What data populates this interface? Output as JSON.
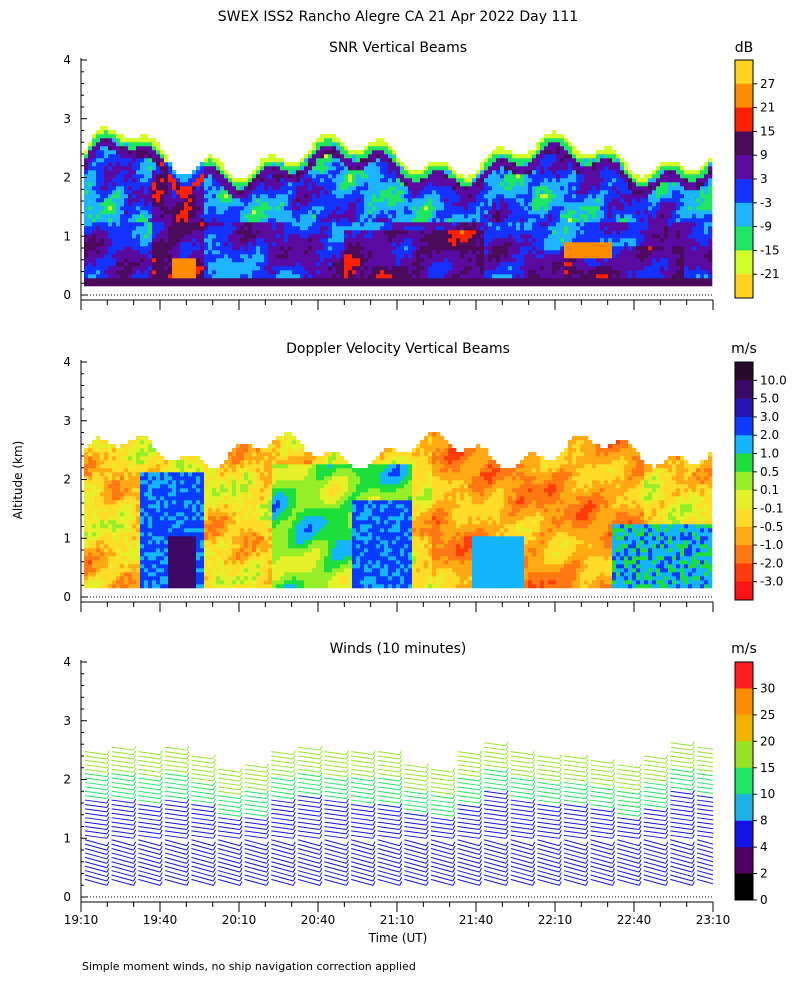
{
  "figure": {
    "title": "SWEX ISS2 Rancho Alegre CA  21 Apr 2022 Day 111",
    "ylabel": "Altitude (km)",
    "xlabel": "Time (UT)",
    "footnote": "Simple moment winds, no ship navigation correction applied"
  },
  "chart_data": [
    {
      "type": "heatmap",
      "title": "SNR Vertical Beams",
      "x_ticks": [
        "19:10",
        "19:40",
        "20:10",
        "20:40",
        "21:10",
        "21:40",
        "22:10",
        "22:40",
        "23:10"
      ],
      "ylim": [
        0,
        4
      ],
      "y_ticks": [
        "0",
        "1",
        "2",
        "3",
        "4"
      ],
      "colorbar": {
        "unit": "dB",
        "labels": [
          "27",
          "21",
          "15",
          "9",
          "3",
          "-3",
          "-9",
          "-15",
          "-21"
        ],
        "colors": [
          "#ffd21e",
          "#ff8c00",
          "#ff2200",
          "#4b0a5a",
          "#5a0aa0",
          "#1432ff",
          "#1eb4ff",
          "#1ee664",
          "#d2ff28",
          "#ffd21e"
        ]
      },
      "description_top_km": 2.5
    },
    {
      "type": "heatmap",
      "title": "Doppler Velocity Vertical Beams",
      "x_ticks": [
        "19:10",
        "19:40",
        "20:10",
        "20:40",
        "21:10",
        "21:40",
        "22:10",
        "22:40",
        "23:10"
      ],
      "ylim": [
        0,
        4
      ],
      "y_ticks": [
        "0",
        "1",
        "2",
        "3",
        "4"
      ],
      "colorbar": {
        "unit": "m/s",
        "labels": [
          "10.0",
          "5.0",
          "3.0",
          "2.0",
          "1.0",
          "0.5",
          "0.1",
          "-0.1",
          "-0.5",
          "-1.0",
          "-2.0",
          "-3.0"
        ],
        "colors": [
          "#2a0a2a",
          "#3c0a64",
          "#2814b4",
          "#0a3cff",
          "#14b4ff",
          "#1ede3c",
          "#96ee28",
          "#e6f028",
          "#ffdc28",
          "#ffaa14",
          "#ff7814",
          "#ff3c0a",
          "#ff1414"
        ]
      }
    },
    {
      "type": "wind_barbs",
      "title": "Winds (10 minutes)",
      "x_ticks": [
        "19:10",
        "19:40",
        "20:10",
        "20:40",
        "21:10",
        "21:40",
        "22:10",
        "22:40",
        "23:10"
      ],
      "ylim": [
        0,
        4
      ],
      "y_ticks": [
        "0",
        "1",
        "2",
        "3",
        "4"
      ],
      "colorbar": {
        "unit": "m/s",
        "labels": [
          "30",
          "25",
          "20",
          "15",
          "10",
          "8",
          "4",
          "2",
          "0"
        ],
        "colors": [
          "#ff1e1e",
          "#ff8c00",
          "#f0b400",
          "#96e628",
          "#1ee664",
          "#1eb4e6",
          "#1414e6",
          "#500064",
          "#000000"
        ]
      }
    }
  ]
}
